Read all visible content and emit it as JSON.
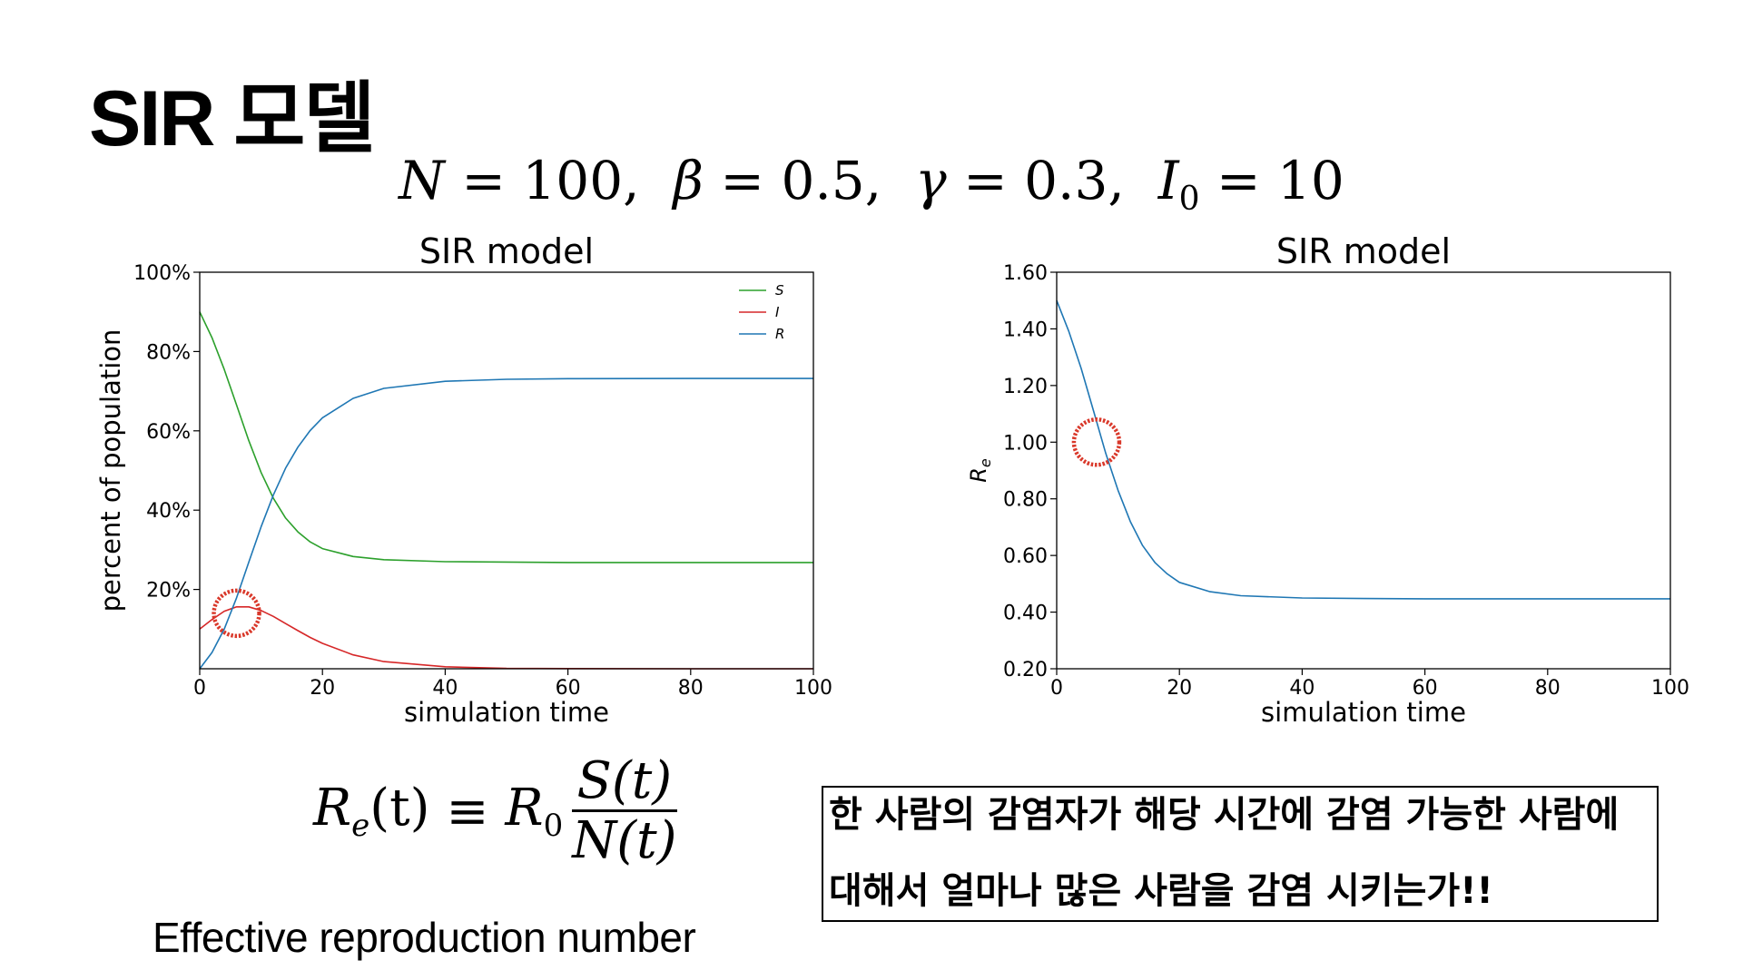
{
  "slide": {
    "title": "SIR 모델",
    "caption": "Effective reproduction number",
    "note": {
      "line1": "한 사람의 감염자가 해당 시간에 감염 가능한 사람에",
      "line2": "대해서 얼마나 많은 사람을 감염 시키는가!!"
    }
  },
  "params": {
    "N": "100",
    "beta": "0.5",
    "gamma": "0.3",
    "I0": "10"
  },
  "formula": {
    "lhs_symbol": "R",
    "lhs_sub": "e",
    "lhs_arg": "(t)",
    "equiv": "≡",
    "rhs_symbol": "R",
    "rhs_sub": "0",
    "numerator": "S(t)",
    "denominator": "N(t)"
  },
  "colors": {
    "S": "#2ca02c",
    "I": "#d62728",
    "R": "#1f77b4",
    "highlight_circle": "#d9382a"
  },
  "chart_data": [
    {
      "type": "line",
      "title": "SIR model",
      "xlabel": "simulation time",
      "ylabel": "percent of population",
      "xlim": [
        0,
        100
      ],
      "ylim": [
        0,
        100
      ],
      "x_ticks": [
        "0",
        "20",
        "40",
        "60",
        "80",
        "100"
      ],
      "y_ticks": [
        "20%",
        "40%",
        "60%",
        "80%",
        "100%"
      ],
      "legend": {
        "placement": "top-right",
        "entries": [
          "S",
          "I",
          "R"
        ]
      },
      "grid": false,
      "x": [
        0,
        2,
        4,
        6,
        8,
        10,
        12,
        14,
        16,
        18,
        20,
        25,
        30,
        40,
        50,
        60,
        80,
        100
      ],
      "series": [
        {
          "name": "S",
          "values": [
            90,
            83.5,
            75.5,
            66.5,
            57.5,
            49.5,
            43,
            38,
            34.5,
            32,
            30.3,
            28.3,
            27.5,
            27,
            26.9,
            26.8,
            26.8,
            26.8
          ]
        },
        {
          "name": "I",
          "values": [
            10,
            12.4,
            14.5,
            15.6,
            15.6,
            14.7,
            13.2,
            11.4,
            9.6,
            7.9,
            6.4,
            3.5,
            1.8,
            0.5,
            0.1,
            0.05,
            0,
            0
          ]
        },
        {
          "name": "R",
          "values": [
            0,
            4.1,
            10,
            17.9,
            26.9,
            35.8,
            43.8,
            50.6,
            55.9,
            60.1,
            63.3,
            68.2,
            70.7,
            72.5,
            73.0,
            73.15,
            73.2,
            73.2
          ]
        }
      ],
      "annotation": {
        "type": "circle",
        "x": 6,
        "y": 14
      }
    },
    {
      "type": "line",
      "title": "SIR model",
      "xlabel": "simulation time",
      "ylabel": "Re",
      "xlim": [
        0,
        100
      ],
      "ylim": [
        0.2,
        1.6
      ],
      "x_ticks": [
        "0",
        "20",
        "40",
        "60",
        "80",
        "100"
      ],
      "y_ticks": [
        "0.20",
        "0.40",
        "0.60",
        "0.80",
        "1.00",
        "1.20",
        "1.40",
        "1.60"
      ],
      "grid": false,
      "x": [
        0,
        2,
        4,
        6,
        8,
        10,
        12,
        14,
        16,
        18,
        20,
        25,
        30,
        40,
        50,
        60,
        80,
        100
      ],
      "series": [
        {
          "name": "Re",
          "values": [
            1.5,
            1.39,
            1.26,
            1.11,
            0.96,
            0.83,
            0.72,
            0.635,
            0.575,
            0.535,
            0.505,
            0.472,
            0.458,
            0.45,
            0.448,
            0.447,
            0.447,
            0.447
          ]
        }
      ],
      "annotation": {
        "type": "circle",
        "x": 6.5,
        "y": 1.0
      }
    }
  ]
}
